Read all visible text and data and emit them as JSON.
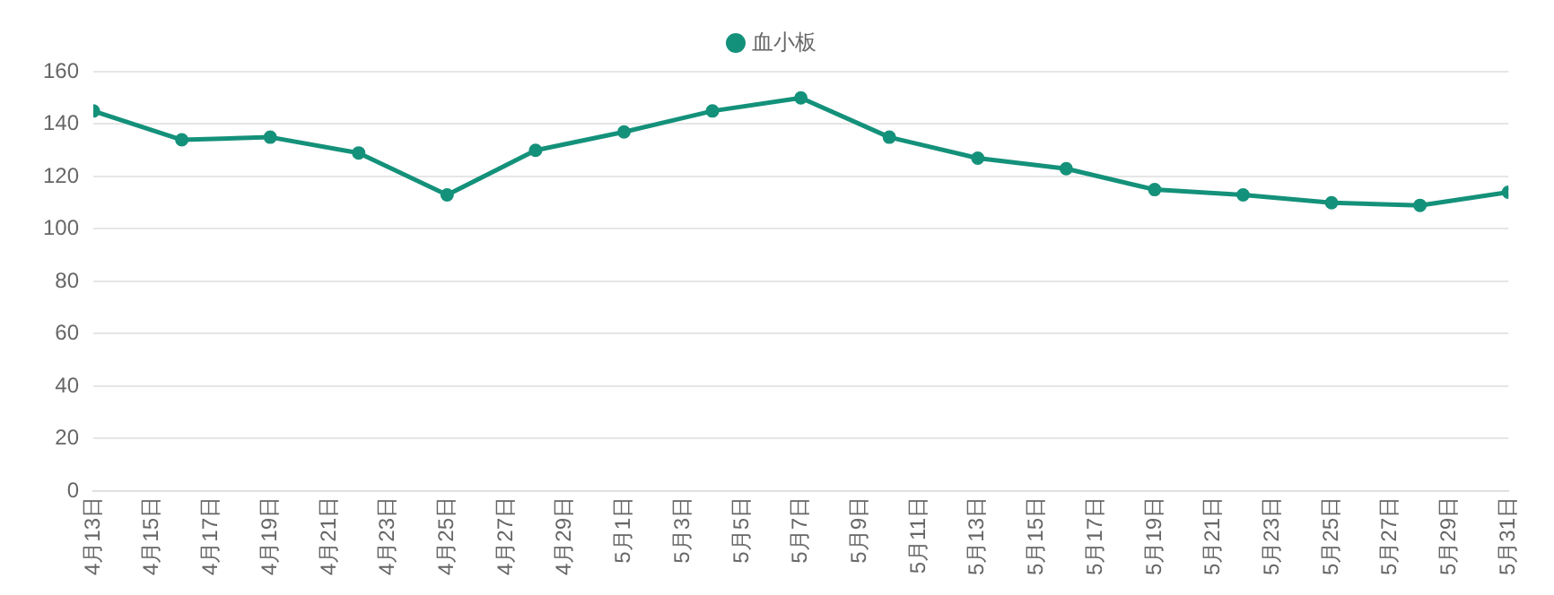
{
  "chart_data": {
    "type": "line",
    "x": [
      "--04-13",
      "--04-16",
      "--04-19",
      "--04-22",
      "--04-25",
      "--04-28",
      "--05-01",
      "--05-04",
      "--05-07",
      "--05-10",
      "--05-13",
      "--05-16",
      "--05-19",
      "--05-22",
      "--05-25",
      "--05-28",
      "--05-31"
    ],
    "series": [
      {
        "name": "血小板",
        "color": "#14917a",
        "values": [
          145,
          134,
          135,
          129,
          113,
          130,
          137,
          145,
          150,
          135,
          127,
          123,
          115,
          113,
          110,
          109,
          114
        ]
      }
    ],
    "xlim": [
      "--04-13",
      "--05-31"
    ],
    "xticks": [
      {
        "value": "--04-13",
        "label": "4月13日"
      },
      {
        "value": "--04-15",
        "label": "4月15日"
      },
      {
        "value": "--04-17",
        "label": "4月17日"
      },
      {
        "value": "--04-19",
        "label": "4月19日"
      },
      {
        "value": "--04-21",
        "label": "4月21日"
      },
      {
        "value": "--04-23",
        "label": "4月23日"
      },
      {
        "value": "--04-25",
        "label": "4月25日"
      },
      {
        "value": "--04-27",
        "label": "4月27日"
      },
      {
        "value": "--04-29",
        "label": "4月29日"
      },
      {
        "value": "--05-01",
        "label": "5月1日"
      },
      {
        "value": "--05-03",
        "label": "5月3日"
      },
      {
        "value": "--05-05",
        "label": "5月5日"
      },
      {
        "value": "--05-07",
        "label": "5月7日"
      },
      {
        "value": "--05-09",
        "label": "5月9日"
      },
      {
        "value": "--05-11",
        "label": "5月11日"
      },
      {
        "value": "--05-13",
        "label": "5月13日"
      },
      {
        "value": "--05-15",
        "label": "5月15日"
      },
      {
        "value": "--05-17",
        "label": "5月17日"
      },
      {
        "value": "--05-19",
        "label": "5月19日"
      },
      {
        "value": "--05-21",
        "label": "5月21日"
      },
      {
        "value": "--05-23",
        "label": "5月23日"
      },
      {
        "value": "--05-25",
        "label": "5月25日"
      },
      {
        "value": "--05-27",
        "label": "5月27日"
      },
      {
        "value": "--05-29",
        "label": "5月29日"
      },
      {
        "value": "--05-31",
        "label": "5月31日"
      }
    ],
    "ylim": [
      0,
      160
    ],
    "yticks": [
      0,
      20,
      40,
      60,
      80,
      100,
      120,
      140,
      160
    ],
    "grid": "y",
    "legend": "top",
    "marker": "circle",
    "line_style": "solid"
  }
}
